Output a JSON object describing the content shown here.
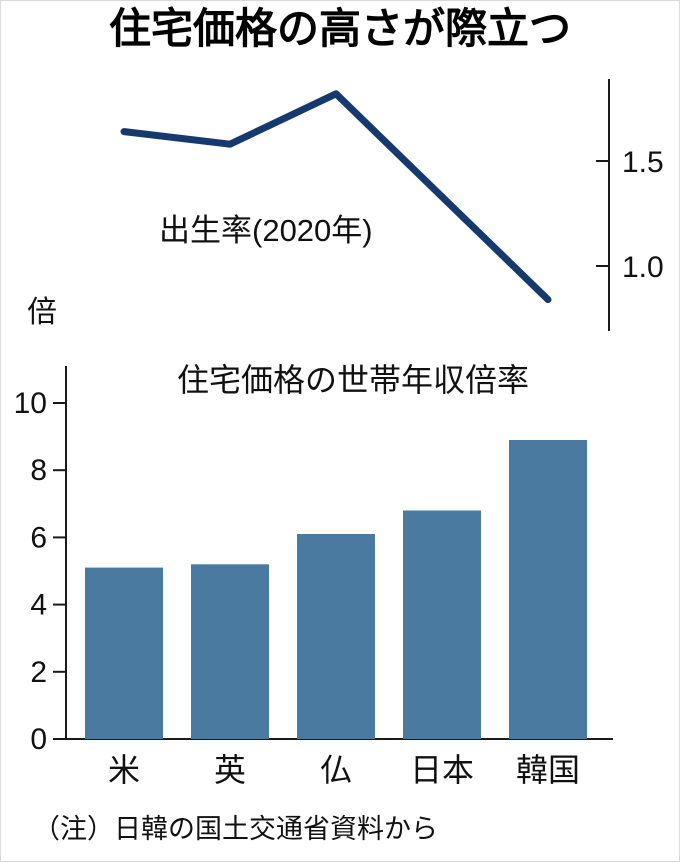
{
  "page": {
    "title": "住宅価格の高さが際立つ",
    "unit_label": "倍",
    "note": "（注）日韓の国土交通省資料から"
  },
  "colors": {
    "line": "#16396e",
    "bar": "#4a7aa0",
    "axis": "#1a1a1a",
    "text": "#111111"
  },
  "chart_data": [
    {
      "type": "line",
      "title": "出生率(2020年)",
      "categories": [
        "米",
        "英",
        "仏",
        "日本",
        "韓国"
      ],
      "values": [
        1.64,
        1.58,
        1.82,
        1.33,
        0.84
      ],
      "yticks": [
        1.5,
        1.0
      ],
      "ylim": [
        0.75,
        1.95
      ],
      "axis_side": "right",
      "legend_position": "none",
      "grid": false
    },
    {
      "type": "bar",
      "title": "住宅価格の世帯年収倍率",
      "categories": [
        "米",
        "英",
        "仏",
        "日本",
        "韓国"
      ],
      "values": [
        5.1,
        5.2,
        6.1,
        6.8,
        8.9
      ],
      "ylabel": "倍",
      "yticks": [
        0,
        2,
        4,
        6,
        8,
        10
      ],
      "ylim": [
        0,
        10.8
      ],
      "legend_position": "none",
      "grid": false
    }
  ]
}
